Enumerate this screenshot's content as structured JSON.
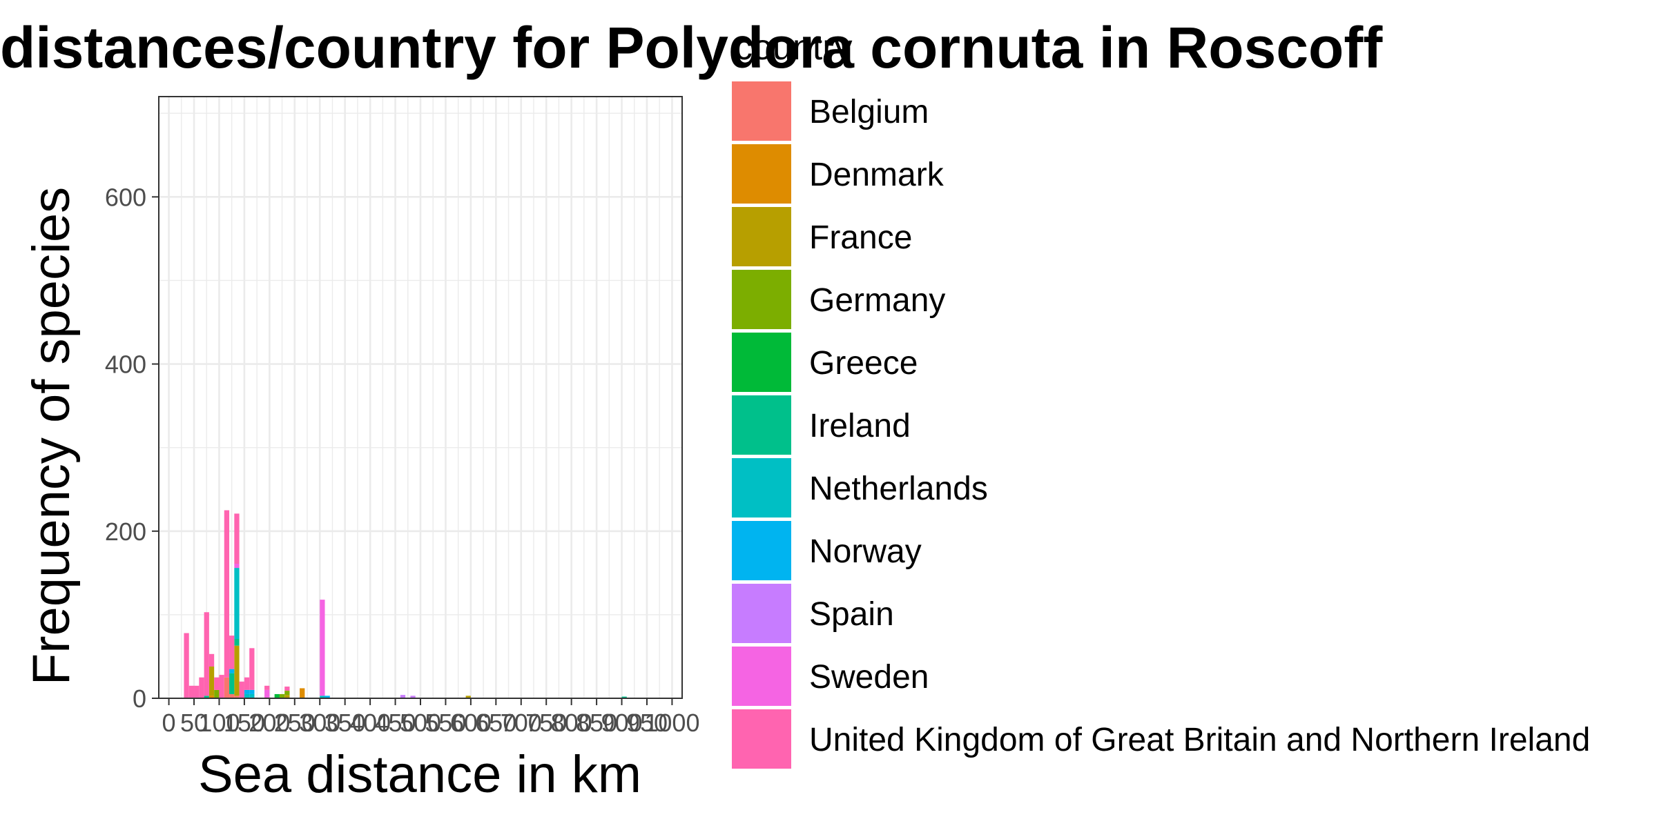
{
  "chart_data": {
    "type": "bar",
    "stacked": true,
    "title": "distances/country for Polydora cornuta in Roscoff",
    "xlabel": "Sea distance in km",
    "ylabel": "Frequency of species",
    "xlim": [
      0,
      1000
    ],
    "ylim": [
      0,
      720
    ],
    "x_ticks": [
      0,
      50,
      100,
      150,
      200,
      250,
      300,
      350,
      400,
      450,
      500,
      550,
      600,
      650,
      700,
      750,
      800,
      850,
      900,
      950,
      1000
    ],
    "x_tick_labels": [
      "0",
      "50",
      "100",
      "150",
      "200",
      "250",
      "300",
      "350",
      "400",
      "450",
      "500",
      "550",
      "600",
      "650",
      "700",
      "750",
      "800",
      "850",
      "900",
      "950",
      "1000"
    ],
    "y_ticks": [
      0,
      200,
      400,
      600
    ],
    "y_tick_labels": [
      "0",
      "200",
      "400",
      "600"
    ],
    "grid": true,
    "legend": {
      "title": "country",
      "position": "right"
    },
    "bin_width": 10,
    "series": [
      {
        "name": "Belgium",
        "color": "#F8766D",
        "points": [
          [
            115,
            25
          ],
          [
            125,
            5
          ],
          [
            135,
            3
          ]
        ]
      },
      {
        "name": "Denmark",
        "color": "#DE8C00",
        "points": [
          [
            265,
            12
          ],
          [
            85,
            3
          ]
        ]
      },
      {
        "name": "France",
        "color": "#B79F00",
        "points": [
          [
            85,
            35
          ],
          [
            135,
            60
          ],
          [
            235,
            4
          ],
          [
            595,
            3
          ]
        ]
      },
      {
        "name": "Germany",
        "color": "#7CAE00",
        "points": [
          [
            95,
            10
          ],
          [
            225,
            5
          ],
          [
            235,
            5
          ]
        ]
      },
      {
        "name": "Greece",
        "color": "#00BA38",
        "points": [
          [
            215,
            5
          ]
        ]
      },
      {
        "name": "Ireland",
        "color": "#00C08B",
        "points": [
          [
            75,
            3
          ],
          [
            125,
            25
          ],
          [
            135,
            8
          ],
          [
            905,
            2
          ]
        ]
      },
      {
        "name": "Netherlands",
        "color": "#00BFC4",
        "points": [
          [
            135,
            85
          ],
          [
            155,
            5
          ],
          [
            165,
            5
          ],
          [
            305,
            3
          ]
        ]
      },
      {
        "name": "Norway",
        "color": "#00B4F0",
        "points": [
          [
            125,
            5
          ],
          [
            155,
            5
          ],
          [
            165,
            5
          ],
          [
            315,
            3
          ]
        ]
      },
      {
        "name": "Spain",
        "color": "#C77CFF",
        "points": [
          [
            465,
            4
          ],
          [
            485,
            3
          ]
        ]
      },
      {
        "name": "Sweden",
        "color": "#F564E3",
        "points": [
          [
            135,
            5
          ],
          [
            195,
            10
          ],
          [
            305,
            115
          ]
        ]
      },
      {
        "name": "United Kingdom of Great Britain and Northern Ireland",
        "color": "#FF64B0",
        "points": [
          [
            35,
            78
          ],
          [
            45,
            15
          ],
          [
            55,
            15
          ],
          [
            65,
            25
          ],
          [
            75,
            100
          ],
          [
            85,
            15
          ],
          [
            95,
            15
          ],
          [
            105,
            28
          ],
          [
            115,
            200
          ],
          [
            125,
            40
          ],
          [
            135,
            60
          ],
          [
            145,
            20
          ],
          [
            155,
            15
          ],
          [
            165,
            50
          ],
          [
            195,
            5
          ],
          [
            235,
            5
          ]
        ]
      }
    ]
  }
}
